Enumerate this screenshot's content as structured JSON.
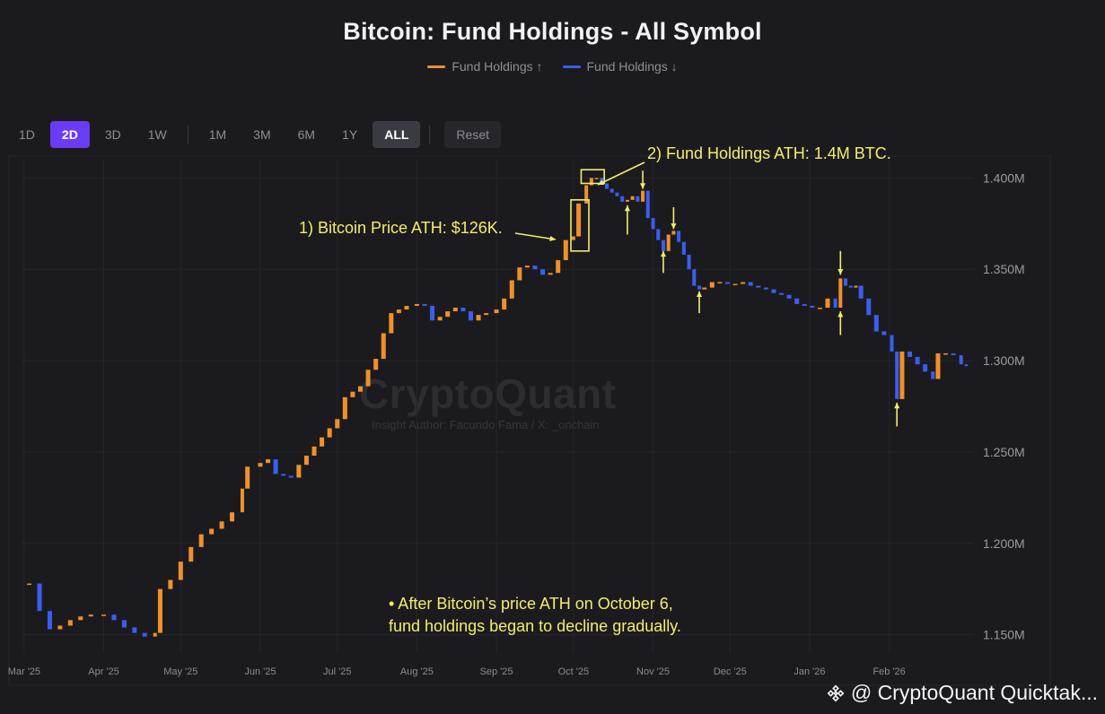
{
  "title": "Bitcoin: Fund Holdings - All Symbol",
  "legend": [
    {
      "label": "Fund Holdings ↑",
      "color": "#f0902a"
    },
    {
      "label": "Fund Holdings ↓",
      "color": "#3a5ef0"
    }
  ],
  "ranges": [
    {
      "label": "1D",
      "state": "normal"
    },
    {
      "label": "2D",
      "state": "active"
    },
    {
      "label": "3D",
      "state": "normal"
    },
    {
      "label": "1W",
      "state": "normal"
    },
    {
      "label": "1M",
      "state": "normal"
    },
    {
      "label": "3M",
      "state": "normal"
    },
    {
      "label": "6M",
      "state": "normal"
    },
    {
      "label": "1Y",
      "state": "normal"
    },
    {
      "label": "ALL",
      "state": "strong"
    }
  ],
  "reset_label": "Reset",
  "watermark": "CryptoQuant",
  "watermark_sub": "Insight Author: Facundo Fama / X: _onchain",
  "annotations": {
    "price_ath": "1) Bitcoin Price ATH: $126K.",
    "holdings_ath": "2) Fund Holdings ATH: 1.4M BTC.",
    "note_line1": "• After Bitcoin’s price ATH on October 6,",
    "note_line2": "fund holdings began to decline gradually."
  },
  "source": "@ CryptoQuant Quicktak...",
  "source_icon": "binance-icon",
  "chart_data": {
    "type": "candlestick",
    "title": "Bitcoin: Fund Holdings - All Symbol",
    "y_unit": "BTC",
    "ylim": [
      1140000,
      1410000
    ],
    "y_ticks": [
      1150000,
      1200000,
      1250000,
      1300000,
      1350000,
      1400000
    ],
    "y_tick_labels": [
      "1.150M",
      "1.200M",
      "1.250M",
      "1.300M",
      "1.350M",
      "1.400M"
    ],
    "x_range": [
      "2025-02-28",
      "2026-03-06"
    ],
    "x_ticks": [
      {
        "date": "2025-03-01",
        "label": "Mar '25"
      },
      {
        "date": "2025-04-01",
        "label": "Apr '25"
      },
      {
        "date": "2025-05-01",
        "label": "May '25"
      },
      {
        "date": "2025-06-01",
        "label": "Jun '25"
      },
      {
        "date": "2025-07-01",
        "label": "Jul '25"
      },
      {
        "date": "2025-08-01",
        "label": "Aug '25"
      },
      {
        "date": "2025-09-01",
        "label": "Sep '25"
      },
      {
        "date": "2025-10-01",
        "label": "Oct '25"
      },
      {
        "date": "2025-11-01",
        "label": "Nov '25"
      },
      {
        "date": "2025-12-01",
        "label": "Dec '25"
      },
      {
        "date": "2026-01-01",
        "label": "Jan '26"
      },
      {
        "date": "2026-02-01",
        "label": "Feb '26"
      }
    ],
    "grid": true,
    "legend_position": "top-center",
    "colors": {
      "up": "#f0902a",
      "down": "#3a5ef0"
    },
    "closes": [
      {
        "date": "2025-03-03",
        "value": 1178000
      },
      {
        "date": "2025-03-07",
        "value": 1163000
      },
      {
        "date": "2025-03-11",
        "value": 1153000
      },
      {
        "date": "2025-03-15",
        "value": 1155000
      },
      {
        "date": "2025-03-19",
        "value": 1158000
      },
      {
        "date": "2025-03-23",
        "value": 1160000
      },
      {
        "date": "2025-03-27",
        "value": 1161000
      },
      {
        "date": "2025-04-01",
        "value": 1161000
      },
      {
        "date": "2025-04-05",
        "value": 1158000
      },
      {
        "date": "2025-04-09",
        "value": 1154000
      },
      {
        "date": "2025-04-13",
        "value": 1151000
      },
      {
        "date": "2025-04-17",
        "value": 1149000
      },
      {
        "date": "2025-04-21",
        "value": 1151000
      },
      {
        "date": "2025-04-23",
        "value": 1175000
      },
      {
        "date": "2025-04-27",
        "value": 1180000
      },
      {
        "date": "2025-05-01",
        "value": 1190000
      },
      {
        "date": "2025-05-05",
        "value": 1198000
      },
      {
        "date": "2025-05-09",
        "value": 1205000
      },
      {
        "date": "2025-05-13",
        "value": 1208000
      },
      {
        "date": "2025-05-17",
        "value": 1212000
      },
      {
        "date": "2025-05-21",
        "value": 1217000
      },
      {
        "date": "2025-05-25",
        "value": 1230000
      },
      {
        "date": "2025-05-27",
        "value": 1242000
      },
      {
        "date": "2025-06-01",
        "value": 1244000
      },
      {
        "date": "2025-06-04",
        "value": 1246000
      },
      {
        "date": "2025-06-07",
        "value": 1238000
      },
      {
        "date": "2025-06-10",
        "value": 1237000
      },
      {
        "date": "2025-06-13",
        "value": 1236000
      },
      {
        "date": "2025-06-16",
        "value": 1243000
      },
      {
        "date": "2025-06-19",
        "value": 1248000
      },
      {
        "date": "2025-06-22",
        "value": 1253000
      },
      {
        "date": "2025-06-25",
        "value": 1258000
      },
      {
        "date": "2025-06-28",
        "value": 1263000
      },
      {
        "date": "2025-07-01",
        "value": 1268000
      },
      {
        "date": "2025-07-04",
        "value": 1280000
      },
      {
        "date": "2025-07-07",
        "value": 1283000
      },
      {
        "date": "2025-07-10",
        "value": 1286000
      },
      {
        "date": "2025-07-13",
        "value": 1295000
      },
      {
        "date": "2025-07-16",
        "value": 1301000
      },
      {
        "date": "2025-07-19",
        "value": 1315000
      },
      {
        "date": "2025-07-22",
        "value": 1326000
      },
      {
        "date": "2025-07-25",
        "value": 1328000
      },
      {
        "date": "2025-07-28",
        "value": 1330000
      },
      {
        "date": "2025-08-01",
        "value": 1331000
      },
      {
        "date": "2025-08-04",
        "value": 1330000
      },
      {
        "date": "2025-08-07",
        "value": 1322000
      },
      {
        "date": "2025-08-10",
        "value": 1324000
      },
      {
        "date": "2025-08-13",
        "value": 1327000
      },
      {
        "date": "2025-08-16",
        "value": 1329000
      },
      {
        "date": "2025-08-19",
        "value": 1327000
      },
      {
        "date": "2025-08-22",
        "value": 1322000
      },
      {
        "date": "2025-08-25",
        "value": 1325000
      },
      {
        "date": "2025-08-28",
        "value": 1326000
      },
      {
        "date": "2025-09-01",
        "value": 1328000
      },
      {
        "date": "2025-09-04",
        "value": 1334000
      },
      {
        "date": "2025-09-07",
        "value": 1344000
      },
      {
        "date": "2025-09-10",
        "value": 1351000
      },
      {
        "date": "2025-09-13",
        "value": 1352000
      },
      {
        "date": "2025-09-16",
        "value": 1350000
      },
      {
        "date": "2025-09-19",
        "value": 1347000
      },
      {
        "date": "2025-09-22",
        "value": 1348000
      },
      {
        "date": "2025-09-25",
        "value": 1355000
      },
      {
        "date": "2025-09-28",
        "value": 1366000
      },
      {
        "date": "2025-10-01",
        "value": 1368000
      },
      {
        "date": "2025-10-03",
        "value": 1386000
      },
      {
        "date": "2025-10-06",
        "value": 1396000
      },
      {
        "date": "2025-10-08",
        "value": 1400000
      },
      {
        "date": "2025-10-10",
        "value": 1400000
      },
      {
        "date": "2025-10-12",
        "value": 1397000
      },
      {
        "date": "2025-10-14",
        "value": 1394000
      },
      {
        "date": "2025-10-16",
        "value": 1392000
      },
      {
        "date": "2025-10-18",
        "value": 1390000
      },
      {
        "date": "2025-10-20",
        "value": 1387000
      },
      {
        "date": "2025-10-22",
        "value": 1388000
      },
      {
        "date": "2025-10-24",
        "value": 1390000
      },
      {
        "date": "2025-10-26",
        "value": 1387000
      },
      {
        "date": "2025-10-28",
        "value": 1393000
      },
      {
        "date": "2025-10-30",
        "value": 1378000
      },
      {
        "date": "2025-11-01",
        "value": 1372000
      },
      {
        "date": "2025-11-03",
        "value": 1366000
      },
      {
        "date": "2025-11-05",
        "value": 1360000
      },
      {
        "date": "2025-11-07",
        "value": 1369000
      },
      {
        "date": "2025-11-09",
        "value": 1371000
      },
      {
        "date": "2025-11-11",
        "value": 1365000
      },
      {
        "date": "2025-11-13",
        "value": 1358000
      },
      {
        "date": "2025-11-15",
        "value": 1350000
      },
      {
        "date": "2025-11-17",
        "value": 1341000
      },
      {
        "date": "2025-11-19",
        "value": 1339000
      },
      {
        "date": "2025-11-21",
        "value": 1340000
      },
      {
        "date": "2025-11-24",
        "value": 1343000
      },
      {
        "date": "2025-11-27",
        "value": 1343000
      },
      {
        "date": "2025-11-30",
        "value": 1342000
      },
      {
        "date": "2025-12-03",
        "value": 1342000
      },
      {
        "date": "2025-12-06",
        "value": 1343000
      },
      {
        "date": "2025-12-09",
        "value": 1341000
      },
      {
        "date": "2025-12-12",
        "value": 1340000
      },
      {
        "date": "2025-12-15",
        "value": 1339000
      },
      {
        "date": "2025-12-18",
        "value": 1337000
      },
      {
        "date": "2025-12-21",
        "value": 1336000
      },
      {
        "date": "2025-12-24",
        "value": 1334000
      },
      {
        "date": "2025-12-27",
        "value": 1331000
      },
      {
        "date": "2025-12-30",
        "value": 1330000
      },
      {
        "date": "2026-01-02",
        "value": 1329000
      },
      {
        "date": "2026-01-05",
        "value": 1329000
      },
      {
        "date": "2026-01-08",
        "value": 1334000
      },
      {
        "date": "2026-01-11",
        "value": 1329000
      },
      {
        "date": "2026-01-13",
        "value": 1345000
      },
      {
        "date": "2026-01-15",
        "value": 1341000
      },
      {
        "date": "2026-01-17",
        "value": 1340000
      },
      {
        "date": "2026-01-19",
        "value": 1341000
      },
      {
        "date": "2026-01-21",
        "value": 1334000
      },
      {
        "date": "2026-01-24",
        "value": 1325000
      },
      {
        "date": "2026-01-27",
        "value": 1316000
      },
      {
        "date": "2026-01-30",
        "value": 1314000
      },
      {
        "date": "2026-02-02",
        "value": 1305000
      },
      {
        "date": "2026-02-04",
        "value": 1279000
      },
      {
        "date": "2026-02-06",
        "value": 1305000
      },
      {
        "date": "2026-02-09",
        "value": 1302000
      },
      {
        "date": "2026-02-12",
        "value": 1298000
      },
      {
        "date": "2026-02-15",
        "value": 1294000
      },
      {
        "date": "2026-02-18",
        "value": 1290000
      },
      {
        "date": "2026-02-20",
        "value": 1304000
      },
      {
        "date": "2026-02-23",
        "value": 1304000
      },
      {
        "date": "2026-02-26",
        "value": 1303000
      },
      {
        "date": "2026-03-01",
        "value": 1298000
      },
      {
        "date": "2026-03-03",
        "value": 1297000
      }
    ]
  }
}
